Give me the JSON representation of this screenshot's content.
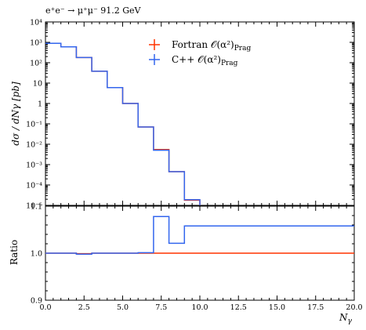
{
  "chart_data": {
    "type": "line",
    "title": "e⁺e⁻ → μ⁺μ⁻ 91.2 GeV",
    "xlabel": "N",
    "xlabel_sub": "γ",
    "ylabel": "dσ / dNγ [pb]",
    "ratio_ylabel": "Ratio",
    "xlim": [
      0,
      20
    ],
    "ylim": [
      1e-05,
      10000
    ],
    "yscale": "log",
    "ratio_ylim": [
      0.9,
      1.1
    ],
    "x_ticks": [
      "0.0",
      "2.5",
      "5.0",
      "7.5",
      "10.0",
      "12.5",
      "15.0",
      "17.5",
      "20.0"
    ],
    "y_ticks": [
      "10⁴",
      "10³",
      "10²",
      "10",
      "1",
      "10⁻¹",
      "10⁻²",
      "10⁻³",
      "10⁻⁴",
      "10⁻⁵"
    ],
    "ratio_ticks": [
      "0.9",
      "1.0",
      "1.1"
    ],
    "bin_edges": [
      0,
      1,
      2,
      3,
      4,
      5,
      6,
      7,
      8,
      9,
      10
    ],
    "legend_position": "top-right",
    "series": [
      {
        "name": "Fortran O(α²)Prag",
        "name_main": "Fortran 𝒪(α²)",
        "name_sub": "Prag",
        "color": "#ff3300",
        "values": [
          900,
          600,
          180,
          38,
          6,
          1,
          0.07,
          0.0055,
          0.00045,
          1.8e-05
        ],
        "ratio": [
          1.0,
          1.0,
          0.999,
          1.0,
          1.0,
          1.0,
          1.0,
          1.0,
          1.0,
          1.0
        ]
      },
      {
        "name": "C++ O(α²)Prag",
        "name_main": "C++ 𝒪(α²)",
        "name_sub": "Prag",
        "color": "#3366ee",
        "values": [
          900,
          600,
          180,
          38,
          6,
          1,
          0.07,
          0.0051,
          0.00045,
          1.9e-05
        ],
        "ratio": [
          1.0,
          1.0,
          0.998,
          1.0,
          1.0,
          1.0,
          1.001,
          1.078,
          1.021,
          1.058
        ]
      }
    ]
  }
}
